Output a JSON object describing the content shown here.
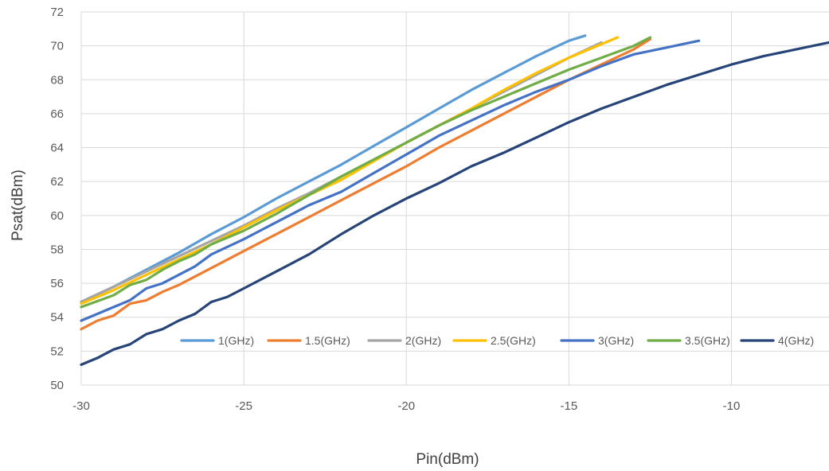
{
  "chart_data": {
    "type": "line",
    "xlabel": "Pin(dBm)",
    "ylabel": "Psat(dBm)",
    "xlim": [
      -30,
      -7
    ],
    "ylim": [
      50,
      72
    ],
    "x_ticks": [
      "-30",
      "-25",
      "-20",
      "-15",
      "-10"
    ],
    "y_ticks": [
      "50",
      "52",
      "54",
      "56",
      "58",
      "60",
      "62",
      "64",
      "66",
      "68",
      "70",
      "72"
    ],
    "grid": true,
    "legend": "bottom-right",
    "series": [
      {
        "name": "1(GHz)",
        "color": "#5b9bd5",
        "x": [
          -30,
          -29,
          -28,
          -27,
          -26,
          -25,
          -24,
          -23,
          -22,
          -21,
          -20,
          -19,
          -18,
          -17,
          -16,
          -15,
          -14.5
        ],
        "y": [
          54.9,
          55.8,
          56.8,
          57.8,
          58.9,
          59.9,
          61.0,
          62.0,
          63.0,
          64.1,
          65.2,
          66.3,
          67.4,
          68.4,
          69.4,
          70.3,
          70.6
        ]
      },
      {
        "name": "1.5(GHz)",
        "color": "#ed7d31",
        "x": [
          -30,
          -29.5,
          -29,
          -28.5,
          -28,
          -27.5,
          -27,
          -26.5,
          -26,
          -25,
          -24,
          -23,
          -22,
          -21,
          -20,
          -19,
          -18,
          -17,
          -16,
          -15,
          -14,
          -13,
          -12.5
        ],
        "y": [
          53.3,
          53.8,
          54.1,
          54.8,
          55.0,
          55.5,
          55.9,
          56.4,
          56.9,
          57.9,
          58.9,
          59.9,
          60.9,
          61.9,
          62.9,
          64.0,
          65.0,
          66.0,
          67.0,
          68.0,
          68.9,
          69.8,
          70.4
        ]
      },
      {
        "name": "2(GHz)",
        "color": "#a5a5a5",
        "x": [
          -30,
          -29,
          -28,
          -27,
          -26,
          -25,
          -24,
          -23,
          -22,
          -21,
          -20,
          -19,
          -18,
          -17,
          -16,
          -15,
          -14
        ],
        "y": [
          54.9,
          55.8,
          56.7,
          57.6,
          58.5,
          59.4,
          60.4,
          61.3,
          62.3,
          63.3,
          64.3,
          65.3,
          66.3,
          67.3,
          68.3,
          69.3,
          70.2
        ]
      },
      {
        "name": "2.5(GHz)",
        "color": "#ffc000",
        "x": [
          -30,
          -29,
          -28,
          -27,
          -26,
          -25,
          -24,
          -23,
          -22,
          -21,
          -20,
          -19,
          -18,
          -17,
          -16,
          -15,
          -14,
          -13.5
        ],
        "y": [
          54.8,
          55.6,
          56.5,
          57.4,
          58.3,
          59.3,
          60.3,
          61.2,
          62.1,
          63.2,
          64.3,
          65.3,
          66.3,
          67.4,
          68.4,
          69.3,
          70.1,
          70.5
        ]
      },
      {
        "name": "3(GHz)",
        "color": "#4472c4",
        "x": [
          -30,
          -29,
          -28.5,
          -28,
          -27.5,
          -27,
          -26.5,
          -26,
          -25,
          -24.5,
          -24,
          -23,
          -22,
          -21,
          -20,
          -19,
          -18,
          -17,
          -16,
          -15,
          -14,
          -13,
          -12,
          -11
        ],
        "y": [
          53.8,
          54.6,
          55.0,
          55.7,
          56.0,
          56.5,
          57.0,
          57.7,
          58.6,
          59.1,
          59.6,
          60.6,
          61.4,
          62.5,
          63.6,
          64.7,
          65.6,
          66.5,
          67.3,
          68.0,
          68.8,
          69.5,
          69.9,
          70.3
        ]
      },
      {
        "name": "3.5(GHz)",
        "color": "#70ad47",
        "x": [
          -30,
          -29,
          -28.5,
          -28,
          -27.5,
          -27,
          -26.5,
          -26,
          -25,
          -24,
          -23,
          -22,
          -21,
          -20,
          -19,
          -18,
          -17,
          -16,
          -15,
          -14,
          -13,
          -12.5
        ],
        "y": [
          54.6,
          55.3,
          55.9,
          56.2,
          56.8,
          57.3,
          57.7,
          58.3,
          59.1,
          60.1,
          61.2,
          62.3,
          63.3,
          64.3,
          65.3,
          66.2,
          67.0,
          67.8,
          68.6,
          69.3,
          70.0,
          70.5
        ]
      },
      {
        "name": "4(GHz)",
        "color": "#264478",
        "x": [
          -30,
          -29.5,
          -29,
          -28.5,
          -28,
          -27.5,
          -27,
          -26.5,
          -26,
          -25.5,
          -25,
          -24,
          -23,
          -22,
          -21,
          -20,
          -19,
          -18,
          -17,
          -16,
          -15,
          -14,
          -13,
          -12,
          -11,
          -10,
          -9,
          -8,
          -7
        ],
        "y": [
          51.2,
          51.6,
          52.1,
          52.4,
          53.0,
          53.3,
          53.8,
          54.2,
          54.9,
          55.2,
          55.7,
          56.7,
          57.7,
          58.9,
          60.0,
          61.0,
          61.9,
          62.9,
          63.7,
          64.6,
          65.5,
          66.3,
          67.0,
          67.7,
          68.3,
          68.9,
          69.4,
          69.8,
          70.2
        ]
      }
    ]
  }
}
